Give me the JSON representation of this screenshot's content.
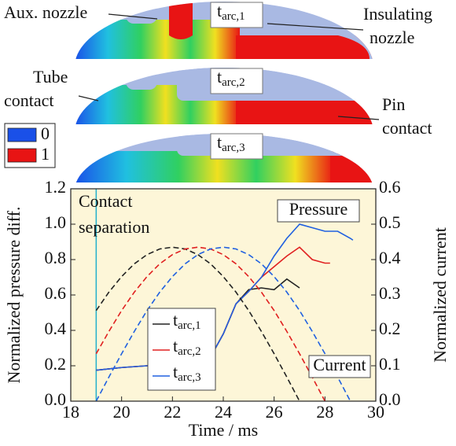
{
  "figure": {
    "labels": [
      {
        "text": "tarc,1",
        "color": "#555555"
      },
      {
        "text": "tarc,2",
        "color": "#e02020"
      },
      {
        "text": "tarc,3",
        "color": "#2060e0"
      }
    ],
    "callouts": {
      "aux_nozzle": "Aux. nozzle",
      "insulating_nozzle": [
        "Insulating",
        "nozzle"
      ],
      "tube_contact": [
        "Tube",
        "contact"
      ],
      "pin_contact": [
        "Pin",
        "contact"
      ]
    },
    "colorbar": [
      {
        "label": "0",
        "color": "#1a50e8"
      },
      {
        "label": "1",
        "color": "#e81414"
      }
    ]
  },
  "chart_data": {
    "type": "line",
    "xlabel": "Time / ms",
    "ylabel": "Normalized pressure diff.",
    "y2label": "Normalized current",
    "xlim": [
      18,
      30
    ],
    "xticks": [
      18,
      20,
      22,
      24,
      26,
      28,
      30
    ],
    "ylim": [
      0,
      1.2
    ],
    "yticks": [
      {
        "value": 0,
        "label": "0.0"
      },
      0.2,
      0.4,
      0.6,
      0.8,
      {
        "value": 1,
        "label": "1.0"
      },
      1.2
    ],
    "y2lim": [
      0,
      0.6
    ],
    "y2ticks": [
      {
        "value": 0,
        "label": "0.0"
      },
      0.1,
      0.2,
      0.3,
      0.4,
      0.5,
      0.6
    ],
    "background": "#fdf6d8",
    "series": [
      {
        "name": "tarc,1",
        "color": "#222222",
        "x": [
          19,
          20,
          21,
          22,
          23,
          23.5,
          24,
          24.5,
          25,
          25.5,
          26,
          26.5,
          27
        ],
        "values": [
          0.175,
          0.19,
          0.2,
          0.205,
          0.21,
          0.25,
          0.38,
          0.55,
          0.63,
          0.64,
          0.63,
          0.69,
          0.64
        ]
      },
      {
        "name": "tarc,2",
        "color": "#e02020",
        "x": [
          19,
          20,
          21,
          22,
          23,
          23.5,
          24,
          24.5,
          25,
          25.5,
          26,
          26.5,
          27,
          27.5,
          28,
          28.2
        ],
        "values": [
          0.175,
          0.19,
          0.2,
          0.205,
          0.21,
          0.25,
          0.38,
          0.55,
          0.62,
          0.7,
          0.76,
          0.82,
          0.87,
          0.8,
          0.78,
          0.78
        ]
      },
      {
        "name": "tarc,3",
        "color": "#2060e0",
        "x": [
          19,
          20,
          21,
          22,
          23,
          23.5,
          24,
          24.5,
          25,
          25.5,
          26,
          26.5,
          27,
          27.5,
          28,
          28.5,
          29,
          29.1
        ],
        "values": [
          0.175,
          0.19,
          0.2,
          0.205,
          0.21,
          0.25,
          0.38,
          0.55,
          0.62,
          0.7,
          0.82,
          0.92,
          1.0,
          0.98,
          0.96,
          0.96,
          0.92,
          0.91
        ]
      },
      {
        "color": "#222222",
        "axis": "y2",
        "dashed": true,
        "x": [
          19,
          19.5,
          20,
          20.5,
          21,
          21.5,
          22,
          22.5,
          23,
          23.5,
          24,
          24.5,
          25,
          25.5,
          26,
          26.5,
          27
        ],
        "values": [
          0.256,
          0.308,
          0.352,
          0.388,
          0.414,
          0.43,
          0.435,
          0.43,
          0.414,
          0.388,
          0.352,
          0.308,
          0.256,
          0.197,
          0.134,
          0.068,
          0
        ]
      },
      {
        "color": "#e02020",
        "axis": "y2",
        "dashed": true,
        "x": [
          19,
          19.5,
          20,
          20.5,
          21,
          21.5,
          22,
          22.5,
          23,
          23.5,
          24,
          24.5,
          25,
          25.5,
          26,
          26.5,
          27,
          27.5,
          28
        ],
        "values": [
          0.134,
          0.197,
          0.256,
          0.308,
          0.352,
          0.388,
          0.414,
          0.43,
          0.435,
          0.43,
          0.414,
          0.388,
          0.352,
          0.308,
          0.256,
          0.197,
          0.134,
          0.068,
          0
        ]
      },
      {
        "color": "#2060e0",
        "axis": "y2",
        "dashed": true,
        "x": [
          19,
          19.5,
          20,
          20.5,
          21,
          21.5,
          22,
          22.5,
          23,
          23.5,
          24,
          24.5,
          25,
          25.5,
          26,
          26.5,
          27,
          27.5,
          28,
          28.5,
          29
        ],
        "values": [
          0,
          0.068,
          0.134,
          0.197,
          0.256,
          0.308,
          0.352,
          0.388,
          0.414,
          0.43,
          0.435,
          0.43,
          0.414,
          0.388,
          0.352,
          0.308,
          0.256,
          0.197,
          0.134,
          0.068,
          0
        ]
      }
    ],
    "annotations": [
      {
        "lines": [
          "Contact",
          "separation"
        ],
        "x": 19,
        "color": "#22b0cc"
      },
      {
        "text": "Pressure"
      },
      {
        "text": "Current"
      }
    ]
  }
}
